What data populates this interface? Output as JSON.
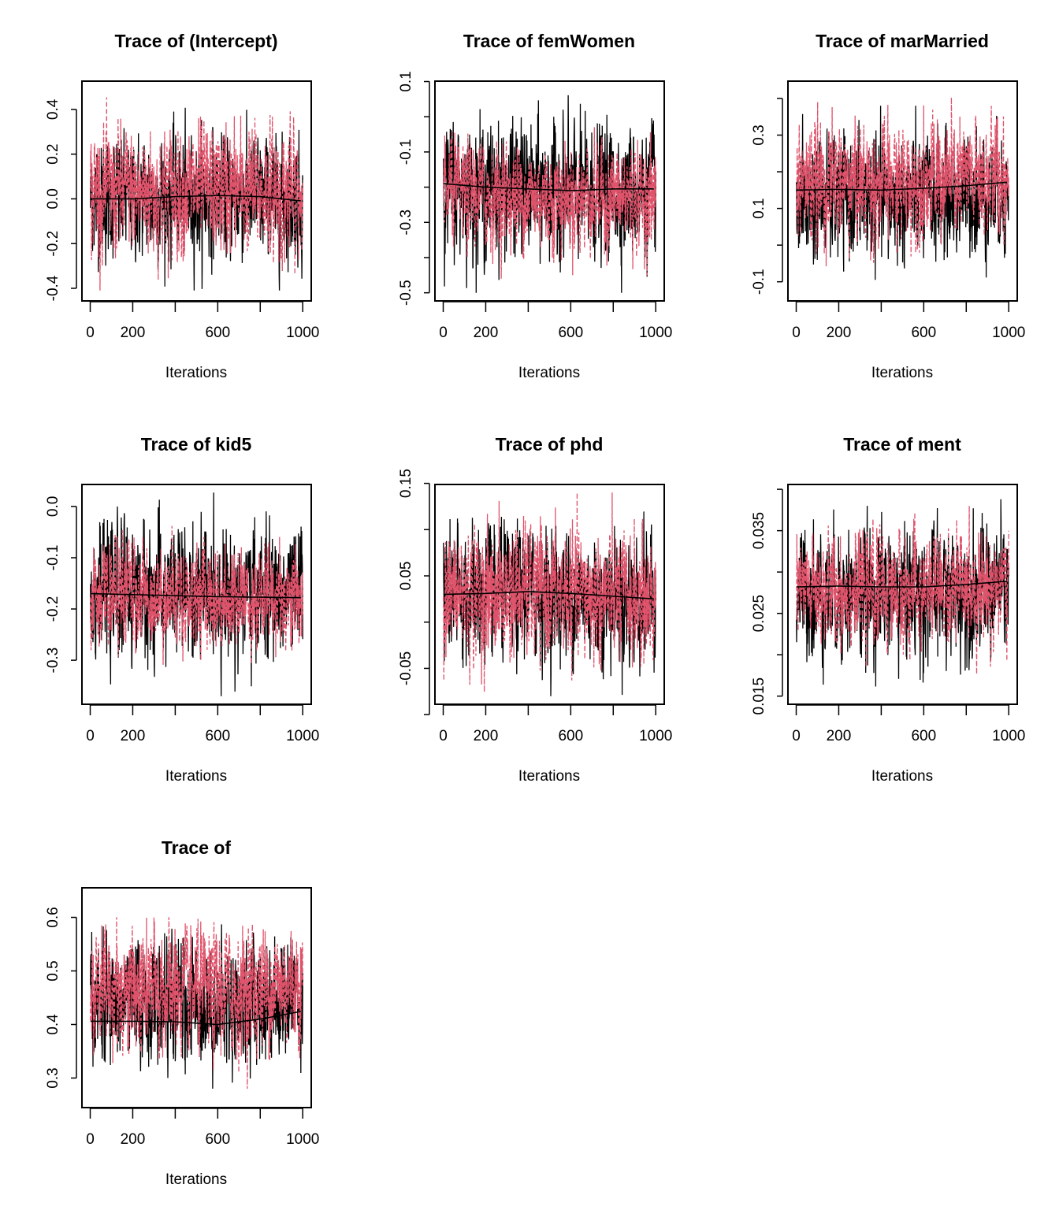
{
  "colors": {
    "chain1": "#000000",
    "chain2": "#DF536B",
    "smooth": "#000000"
  },
  "chart_data": [
    {
      "type": "line",
      "title": "Trace of (Intercept)",
      "xlabel": "Iterations",
      "xlim": [
        1,
        1000
      ],
      "xticks": [
        0,
        200,
        400,
        600,
        800,
        1000
      ],
      "xtick_labels": [
        "0",
        "200",
        "",
        "600",
        "",
        "1000"
      ],
      "ylim": [
        -0.42,
        0.49
      ],
      "yticks": [
        -0.4,
        -0.2,
        0.0,
        0.2,
        0.4
      ],
      "ytick_labels": [
        "-0.4",
        "-0.2",
        "0.0",
        "0.2",
        "0.4"
      ],
      "smooth": {
        "x": [
          1,
          200,
          400,
          600,
          800,
          1000
        ],
        "y": [
          0.0,
          0.0,
          0.01,
          0.015,
          0.01,
          -0.01
        ]
      },
      "chains": [
        {
          "style": "solid",
          "min": -0.41,
          "max": 0.43
        },
        {
          "style": "dashed",
          "min": -0.41,
          "max": 0.49
        }
      ]
    },
    {
      "type": "line",
      "title": "Trace of femWomen",
      "xlabel": "Iterations",
      "xlim": [
        1,
        1000
      ],
      "xticks": [
        0,
        200,
        400,
        600,
        800,
        1000
      ],
      "xtick_labels": [
        "0",
        "200",
        "",
        "600",
        "",
        "1000"
      ],
      "ylim": [
        -0.5,
        0.078
      ],
      "yticks": [
        -0.5,
        -0.4,
        -0.3,
        -0.2,
        -0.1,
        0.0,
        0.1
      ],
      "ytick_labels": [
        "-0.5",
        "",
        "-0.3",
        "",
        "-0.1",
        "",
        "0.1"
      ],
      "smooth": {
        "x": [
          1,
          200,
          400,
          600,
          800,
          1000
        ],
        "y": [
          -0.19,
          -0.2,
          -0.205,
          -0.21,
          -0.205,
          -0.205
        ]
      },
      "chains": [
        {
          "style": "solid",
          "min": -0.5,
          "max": 0.078
        },
        {
          "style": "dashed",
          "min": -0.46,
          "max": 0.0
        }
      ]
    },
    {
      "type": "line",
      "title": "Trace of marMarried",
      "xlabel": "Iterations",
      "xlim": [
        1,
        1000
      ],
      "xticks": [
        0,
        200,
        400,
        600,
        800,
        1000
      ],
      "xtick_labels": [
        "0",
        "200",
        "",
        "600",
        "",
        "1000"
      ],
      "ylim": [
        -0.13,
        0.425
      ],
      "yticks": [
        -0.1,
        0.0,
        0.1,
        0.2,
        0.3,
        0.4
      ],
      "ytick_labels": [
        "-0.1",
        "",
        "0.1",
        "",
        "0.3",
        ""
      ],
      "smooth": {
        "x": [
          1,
          200,
          400,
          600,
          800,
          1000
        ],
        "y": [
          0.15,
          0.152,
          0.15,
          0.155,
          0.162,
          0.172
        ]
      },
      "chains": [
        {
          "style": "solid",
          "min": -0.13,
          "max": 0.38
        },
        {
          "style": "dashed",
          "min": -0.08,
          "max": 0.425
        }
      ]
    },
    {
      "type": "line",
      "title": "Trace of kid5",
      "xlabel": "Iterations",
      "xlim": [
        1,
        1000
      ],
      "xticks": [
        0,
        200,
        400,
        600,
        800,
        1000
      ],
      "xtick_labels": [
        "0",
        "200",
        "",
        "600",
        "",
        "1000"
      ],
      "ylim": [
        -0.37,
        0.027
      ],
      "yticks": [
        -0.3,
        -0.2,
        -0.1,
        0.0
      ],
      "ytick_labels": [
        "-0.3",
        "-0.2",
        "-0.1",
        "0.0"
      ],
      "smooth": {
        "x": [
          1,
          200,
          400,
          600,
          800,
          1000
        ],
        "y": [
          -0.17,
          -0.172,
          -0.174,
          -0.176,
          -0.177,
          -0.178
        ]
      },
      "chains": [
        {
          "style": "solid",
          "min": -0.37,
          "max": 0.027
        },
        {
          "style": "dashed",
          "min": -0.33,
          "max": -0.02
        }
      ]
    },
    {
      "type": "line",
      "title": "Trace of phd",
      "xlabel": "Iterations",
      "xlim": [
        1,
        1000
      ],
      "xticks": [
        0,
        200,
        400,
        600,
        800,
        1000
      ],
      "xtick_labels": [
        "0",
        "200",
        "",
        "600",
        "",
        "1000"
      ],
      "ylim": [
        -0.08,
        0.14
      ],
      "yticks": [
        -0.1,
        -0.05,
        0.0,
        0.05,
        0.1,
        0.15
      ],
      "ytick_labels": [
        "",
        "-0.05",
        "",
        "0.05",
        "",
        "0.15"
      ],
      "smooth": {
        "x": [
          1,
          200,
          400,
          600,
          800,
          1000
        ],
        "y": [
          0.03,
          0.031,
          0.033,
          0.031,
          0.028,
          0.025
        ]
      },
      "chains": [
        {
          "style": "solid",
          "min": -0.08,
          "max": 0.14
        },
        {
          "style": "dashed",
          "min": -0.078,
          "max": 0.14
        }
      ]
    },
    {
      "type": "line",
      "title": "Trace of ment",
      "xlabel": "Iterations",
      "xlim": [
        1,
        1000
      ],
      "xticks": [
        0,
        200,
        400,
        600,
        800,
        1000
      ],
      "xtick_labels": [
        "0",
        "200",
        "",
        "600",
        "",
        "1000"
      ],
      "ylim": [
        0.015,
        0.0396
      ],
      "yticks": [
        0.015,
        0.02,
        0.025,
        0.03,
        0.035,
        0.04
      ],
      "ytick_labels": [
        "0.015",
        "",
        "0.025",
        "",
        "0.035",
        ""
      ],
      "smooth": {
        "x": [
          1,
          200,
          400,
          600,
          800,
          1000
        ],
        "y": [
          0.0282,
          0.0283,
          0.0282,
          0.0282,
          0.0285,
          0.0289
        ]
      },
      "chains": [
        {
          "style": "solid",
          "min": 0.015,
          "max": 0.0396
        },
        {
          "style": "dashed",
          "min": 0.0175,
          "max": 0.038
        }
      ]
    },
    {
      "type": "line",
      "title": "Trace of ",
      "xlabel": "Iterations",
      "xlim": [
        1,
        1000
      ],
      "xticks": [
        0,
        200,
        400,
        600,
        800,
        1000
      ],
      "xtick_labels": [
        "0",
        "200",
        "",
        "600",
        "",
        "1000"
      ],
      "ylim": [
        0.26,
        0.64
      ],
      "yticks": [
        0.3,
        0.4,
        0.5,
        0.6
      ],
      "ytick_labels": [
        "0.3",
        "0.4",
        "0.5",
        "0.6"
      ],
      "smooth": {
        "x": [
          1,
          200,
          400,
          600,
          800,
          1000
        ],
        "y": [
          0.406,
          0.406,
          0.405,
          0.4,
          0.41,
          0.425
        ]
      },
      "chains": [
        {
          "style": "solid",
          "min": 0.26,
          "max": 0.61
        },
        {
          "style": "dashed",
          "min": 0.28,
          "max": 0.64
        }
      ]
    }
  ]
}
